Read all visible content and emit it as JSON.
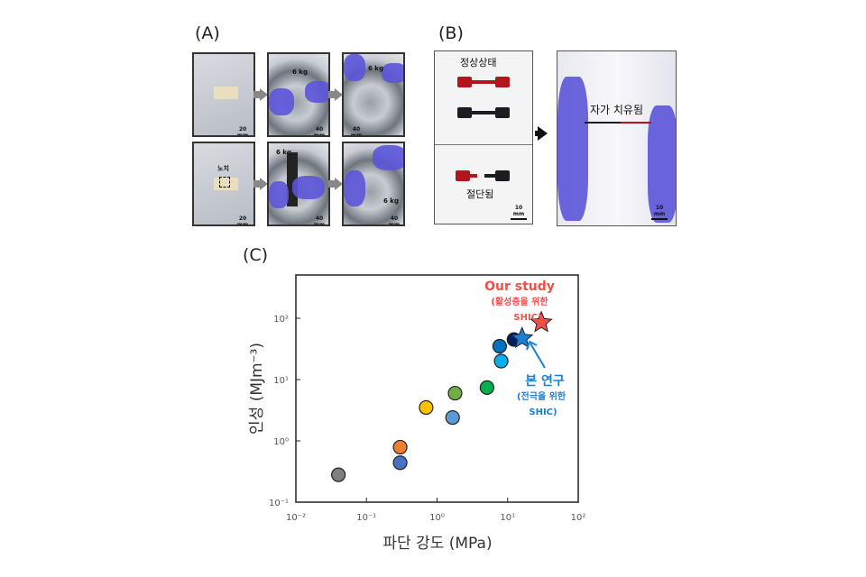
{
  "panels": {
    "a": {
      "label": "(A)",
      "scale_20": "20 mm",
      "scale_40": "40 mm",
      "weight": "6 kg",
      "notch": "노치"
    },
    "b": {
      "label": "(B)",
      "normal": "정상상태",
      "cut": "절단됨",
      "healed": "자가 치유됨",
      "scale_10": "10 mm"
    },
    "c": {
      "label": "(C)"
    }
  },
  "colors": {
    "glove": "#5b55d8",
    "red_specimen": "#b3151c",
    "black_specimen": "#1c1c22",
    "our_study": "#f0504a",
    "this_work": "#1a7fd4"
  },
  "chart_data": {
    "type": "scatter",
    "xlabel": "파단 강도 (MPa)",
    "ylabel": "인성 (MJm⁻³)",
    "x_scale": "log",
    "y_scale": "log",
    "xlim": [
      0.01,
      100
    ],
    "ylim": [
      0.1,
      500
    ],
    "x_ticks": [
      "10⁻²",
      "10⁻¹",
      "10⁰",
      "10¹",
      "10²"
    ],
    "y_ticks": [
      "10⁻¹",
      "10⁰",
      "10¹",
      "10²"
    ],
    "grid": false,
    "points": [
      {
        "x": 0.04,
        "y": 0.28,
        "color": "#7f7f7f",
        "marker": "circle"
      },
      {
        "x": 0.3,
        "y": 0.44,
        "color": "#4472c4",
        "marker": "circle"
      },
      {
        "x": 0.3,
        "y": 0.79,
        "color": "#ed7d31",
        "marker": "circle"
      },
      {
        "x": 0.7,
        "y": 3.5,
        "color": "#ffc000",
        "marker": "circle"
      },
      {
        "x": 1.66,
        "y": 2.4,
        "color": "#5b9bd5",
        "marker": "circle"
      },
      {
        "x": 1.8,
        "y": 6,
        "color": "#70ad47",
        "marker": "circle"
      },
      {
        "x": 5.1,
        "y": 7.4,
        "color": "#00b050",
        "marker": "circle"
      },
      {
        "x": 8.1,
        "y": 20,
        "color": "#00b0f0",
        "marker": "circle"
      },
      {
        "x": 7.7,
        "y": 35,
        "color": "#0070c0",
        "marker": "circle"
      },
      {
        "x": 12.3,
        "y": 45,
        "color": "#002060",
        "marker": "circle"
      },
      {
        "x": 16,
        "y": 47,
        "color": "#1a7fd4",
        "marker": "star"
      },
      {
        "x": 30,
        "y": 85,
        "color": "#f0504a",
        "marker": "star"
      }
    ],
    "annotations": {
      "our_study": {
        "title": "Our study",
        "line1": "(활성층을 위한",
        "line2": "SHIC)"
      },
      "this_work": {
        "title": "본 연구",
        "line1": "(전극을 위한",
        "line2": "SHIC)"
      }
    }
  }
}
